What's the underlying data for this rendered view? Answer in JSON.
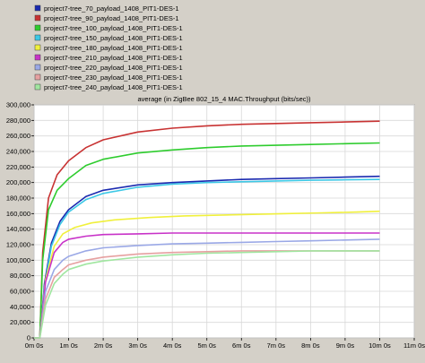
{
  "chart_data": {
    "type": "line",
    "title": "average (in ZigBee 802_15_4 MAC.Throughput (bits/sec))",
    "xlabel": "",
    "ylabel": "",
    "xlim": [
      0,
      660
    ],
    "ylim": [
      0,
      300000
    ],
    "grid": true,
    "legend_placement": "top-left",
    "x_ticks": [
      0,
      60,
      120,
      180,
      240,
      300,
      360,
      420,
      480,
      540,
      600,
      660
    ],
    "x_tick_labels": [
      "0m 0s",
      "1m 0s",
      "2m 0s",
      "3m 0s",
      "4m 0s",
      "5m 0s",
      "6m 0s",
      "7m 0s",
      "8m 0s",
      "9m 0s",
      "10m 0s",
      "11m 0s"
    ],
    "y_ticks": [
      0,
      20000,
      40000,
      60000,
      80000,
      100000,
      120000,
      140000,
      160000,
      180000,
      200000,
      220000,
      240000,
      260000,
      280000,
      300000
    ],
    "y_tick_labels": [
      "0",
      "20,000",
      "40,000",
      "60,000",
      "80,000",
      "100,000",
      "120,000",
      "140,000",
      "160,000",
      "180,000",
      "200,000",
      "220,000",
      "240,000",
      "260,000",
      "280,000",
      "300,000"
    ],
    "series": [
      {
        "name": "project7-tree_70_payload_1408_PIT1-DES-1",
        "color": "#1a2ab0",
        "x": [
          0,
          10,
          18,
          30,
          45,
          60,
          90,
          120,
          180,
          240,
          300,
          360,
          420,
          480,
          540,
          600
        ],
        "y": [
          0,
          0,
          70000,
          122000,
          150000,
          165000,
          182000,
          190000,
          197000,
          200000,
          202000,
          204000,
          205000,
          206000,
          207000,
          208000
        ]
      },
      {
        "name": "project7-tree_90_payload_1408_PIT1-DES-1",
        "color": "#c83232",
        "x": [
          0,
          10,
          15,
          25,
          40,
          60,
          90,
          120,
          180,
          240,
          300,
          360,
          420,
          480,
          540,
          600
        ],
        "y": [
          0,
          0,
          110000,
          180000,
          210000,
          228000,
          245000,
          255000,
          265000,
          270000,
          273000,
          275000,
          276000,
          277000,
          278000,
          279000
        ]
      },
      {
        "name": "project7-tree_100_payload_1408_PIT1-DES-1",
        "color": "#2ecc2e",
        "x": [
          0,
          10,
          15,
          25,
          40,
          60,
          90,
          120,
          180,
          240,
          300,
          360,
          420,
          480,
          540,
          600
        ],
        "y": [
          0,
          0,
          100000,
          165000,
          190000,
          205000,
          222000,
          230000,
          238000,
          242000,
          245000,
          247000,
          248000,
          249000,
          250000,
          251000
        ]
      },
      {
        "name": "project7-tree_150_payload_1408_PIT1-DES-1",
        "color": "#3cc8e6",
        "x": [
          0,
          10,
          18,
          30,
          45,
          60,
          90,
          120,
          180,
          240,
          300,
          360,
          420,
          480,
          540,
          600
        ],
        "y": [
          0,
          0,
          65000,
          118000,
          146000,
          162000,
          178000,
          186000,
          194000,
          198000,
          200000,
          201000,
          202000,
          203000,
          203500,
          204000
        ]
      },
      {
        "name": "project7-tree_180_payload_1408_PIT1-DES-1",
        "color": "#f0f03c",
        "x": [
          0,
          10,
          20,
          35,
          50,
          70,
          100,
          140,
          200,
          260,
          320,
          380,
          440,
          500,
          560,
          600
        ],
        "y": [
          0,
          0,
          75000,
          118000,
          134000,
          142000,
          148000,
          152000,
          155000,
          157000,
          158000,
          159000,
          160000,
          161000,
          162000,
          163000
        ]
      },
      {
        "name": "project7-tree_210_payload_1408_PIT1-DES-1",
        "color": "#c832c8",
        "x": [
          0,
          10,
          20,
          35,
          50,
          60,
          90,
          120,
          180,
          240,
          300,
          360,
          420,
          480,
          540,
          600
        ],
        "y": [
          0,
          0,
          72000,
          110000,
          123000,
          127000,
          131000,
          133000,
          134000,
          135000,
          135000,
          135000,
          135000,
          135000,
          135000,
          135000
        ]
      },
      {
        "name": "project7-tree_220_payload_1408_PIT1-DES-1",
        "color": "#9aa8e6",
        "x": [
          0,
          10,
          20,
          35,
          50,
          60,
          90,
          120,
          180,
          240,
          300,
          360,
          420,
          480,
          540,
          600
        ],
        "y": [
          0,
          0,
          60000,
          88000,
          100000,
          105000,
          112000,
          116000,
          119000,
          121000,
          122000,
          123000,
          124000,
          125000,
          126000,
          127000
        ]
      },
      {
        "name": "project7-tree_230_payload_1408_PIT1-DES-1",
        "color": "#e6a0a0",
        "x": [
          0,
          10,
          20,
          35,
          50,
          60,
          90,
          120,
          180,
          240,
          300,
          360,
          420,
          480,
          540,
          600
        ],
        "y": [
          0,
          0,
          50000,
          78000,
          88000,
          94000,
          100000,
          104000,
          108000,
          110000,
          111000,
          112000,
          112000,
          112000,
          112000,
          112000
        ]
      },
      {
        "name": "project7-tree_240_payload_1408_PIT1-DES-1",
        "color": "#a0e6a0",
        "x": [
          0,
          10,
          20,
          35,
          50,
          60,
          90,
          120,
          180,
          240,
          300,
          360,
          420,
          480,
          540,
          600
        ],
        "y": [
          0,
          0,
          42000,
          70000,
          82000,
          88000,
          95000,
          99000,
          104000,
          107000,
          109000,
          110000,
          111000,
          112000,
          112000,
          112000
        ]
      }
    ]
  }
}
